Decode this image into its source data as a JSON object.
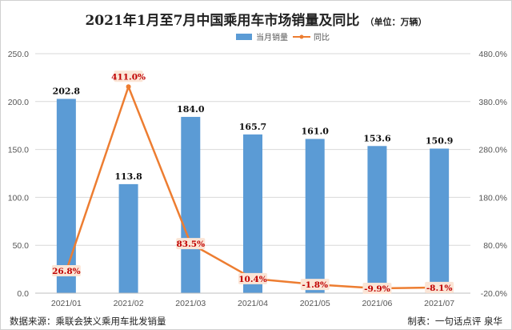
{
  "chart_data": {
    "type": "bar",
    "title": "2021年1月至7月中国乘用车市场销量及同比",
    "unit_note": "（单位：万辆）",
    "categories": [
      "2021/01",
      "2021/02",
      "2021/03",
      "2021/04",
      "2021/05",
      "2021/06",
      "2021/07"
    ],
    "series": [
      {
        "name": "当月销量",
        "type": "bar",
        "axis": "left",
        "color": "#5b9bd5",
        "values": [
          202.8,
          113.8,
          184.0,
          165.7,
          161.0,
          153.6,
          150.9
        ],
        "labels": [
          "202.8",
          "113.8",
          "184.0",
          "165.7",
          "161.0",
          "153.6",
          "150.9"
        ]
      },
      {
        "name": "同比",
        "type": "line",
        "axis": "right",
        "color": "#ed7d31",
        "values": [
          26.8,
          411.0,
          83.5,
          10.4,
          -1.8,
          -9.9,
          -8.1
        ],
        "labels": [
          "26.8%",
          "411.0%",
          "83.5%",
          "10.4%",
          "-1.8%",
          "-9.9%",
          "-8.1%"
        ]
      }
    ],
    "y_left": {
      "min": 0,
      "max": 250,
      "ticks": [
        0,
        50,
        100,
        150,
        200,
        250
      ],
      "tick_labels": [
        "0.0",
        "50.0",
        "100.0",
        "150.0",
        "200.0",
        "250.0"
      ]
    },
    "y_right": {
      "min": -20,
      "max": 480,
      "ticks": [
        -20,
        80,
        180,
        280,
        380,
        480
      ],
      "tick_labels": [
        "-20.0%",
        "80.0%",
        "180.0%",
        "280.0%",
        "380.0%",
        "480.0%"
      ]
    },
    "grid": true,
    "legend_position": "top-right"
  },
  "footer": {
    "source": "数据来源：乘联会狭义乘用车批发销量",
    "credit": "制表：一句话点评 泉华"
  },
  "colors": {
    "bar": "#5b9bd5",
    "line": "#ed7d31",
    "pct_label": "#c00000",
    "pct_label_bg": "#fbe5d6"
  }
}
